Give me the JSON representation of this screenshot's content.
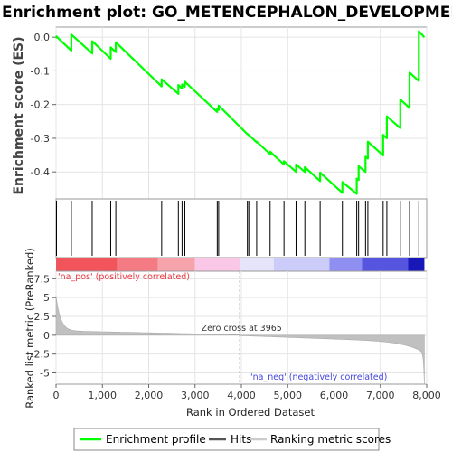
{
  "chart_data": {
    "type": "line",
    "title": "Enrichment plot: GO_METENCEPHALON_DEVELOPMENT",
    "es_ylabel": "Enrichment score (ES)",
    "metric_ylabel": "Ranked list metric (PreRanked)",
    "xlabel": "Rank in Ordered Dataset",
    "xlim": [
      0,
      8000
    ],
    "x_ticks": [
      0,
      1000,
      2000,
      3000,
      4000,
      5000,
      6000,
      7000,
      8000
    ],
    "x_tick_labels": [
      "0",
      "1,000",
      "2,000",
      "3,000",
      "4,000",
      "5,000",
      "6,000",
      "7,000",
      "8,000"
    ],
    "es_ylim": [
      -0.48,
      0.03
    ],
    "es_ticks": [
      0.0,
      -0.1,
      -0.2,
      -0.3,
      -0.4
    ],
    "es_tick_labels": [
      "0.0",
      "-0.1",
      "-0.2",
      "-0.3",
      "-0.4"
    ],
    "metric_ylim": [
      -6.5,
      8.5
    ],
    "metric_ticks": [
      7.5,
      5,
      2.5,
      0,
      -2.5,
      -5
    ],
    "metric_tick_labels": [
      "7.5",
      "5",
      "2.5",
      "0",
      "-2.5",
      "-5"
    ],
    "zero_cross": 3965,
    "zero_cross_label": "Zero cross at 3965",
    "pos_label": "'na_pos' (positively correlated)",
    "neg_label": "'na_neg' (negatively correlated)",
    "grid": true,
    "n_genes": 7950,
    "hits": [
      10,
      330,
      780,
      1180,
      1290,
      2280,
      2640,
      2720,
      2780,
      3480,
      3510,
      4130,
      4160,
      4330,
      4620,
      4920,
      5180,
      5370,
      5700,
      6180,
      6490,
      6530,
      6680,
      6730,
      7060,
      7140,
      7430,
      7630,
      7830
    ],
    "series": [
      {
        "name": "Enrichment profile",
        "color": "#00ff00",
        "x": [
          0,
          10,
          10,
          330,
          330,
          780,
          780,
          1180,
          1180,
          1290,
          1290,
          2280,
          2280,
          2640,
          2640,
          2720,
          2720,
          2780,
          2780,
          3480,
          3480,
          3510,
          3510,
          4130,
          4130,
          4160,
          4160,
          4330,
          4330,
          4620,
          4620,
          4920,
          4920,
          5180,
          5180,
          5370,
          5370,
          5700,
          5700,
          6180,
          6180,
          6490,
          6490,
          6530,
          6530,
          6680,
          6680,
          6730,
          6730,
          7060,
          7060,
          7140,
          7140,
          7430,
          7430,
          7630,
          7630,
          7830,
          7830,
          7950
        ],
        "y": [
          0.0,
          -0.001,
          0.002,
          -0.04,
          0.008,
          -0.048,
          -0.012,
          -0.064,
          -0.03,
          -0.044,
          -0.015,
          -0.146,
          -0.125,
          -0.168,
          -0.142,
          -0.152,
          -0.14,
          -0.147,
          -0.132,
          -0.222,
          -0.212,
          -0.216,
          -0.203,
          -0.288,
          -0.287,
          -0.291,
          -0.29,
          -0.312,
          -0.31,
          -0.347,
          -0.34,
          -0.378,
          -0.368,
          -0.4,
          -0.378,
          -0.4,
          -0.386,
          -0.427,
          -0.402,
          -0.462,
          -0.43,
          -0.465,
          -0.42,
          -0.424,
          -0.383,
          -0.4,
          -0.355,
          -0.36,
          -0.31,
          -0.351,
          -0.29,
          -0.3,
          -0.235,
          -0.27,
          -0.185,
          -0.21,
          -0.105,
          -0.13,
          0.018,
          0.0
        ]
      }
    ],
    "legend": [
      "Enrichment profile",
      "Hits",
      "Ranking metric scores"
    ],
    "legend_colors": [
      "#00ff00",
      "#555555",
      "#cccccc"
    ],
    "metric_color": "#c0c0c0",
    "heat_segments": [
      {
        "from": 0,
        "to": 1320,
        "color": "#f2545b"
      },
      {
        "from": 1320,
        "to": 2200,
        "color": "#f47a83"
      },
      {
        "from": 2200,
        "to": 3000,
        "color": "#f7a3ab"
      },
      {
        "from": 3000,
        "to": 3965,
        "color": "#fac7e6"
      },
      {
        "from": 3965,
        "to": 4700,
        "color": "#e6e4fb"
      },
      {
        "from": 4700,
        "to": 5900,
        "color": "#ccccfa"
      },
      {
        "from": 5900,
        "to": 6600,
        "color": "#8f8ff2"
      },
      {
        "from": 6600,
        "to": 7600,
        "color": "#5555e0"
      },
      {
        "from": 7600,
        "to": 7950,
        "color": "#1818b8"
      }
    ]
  }
}
